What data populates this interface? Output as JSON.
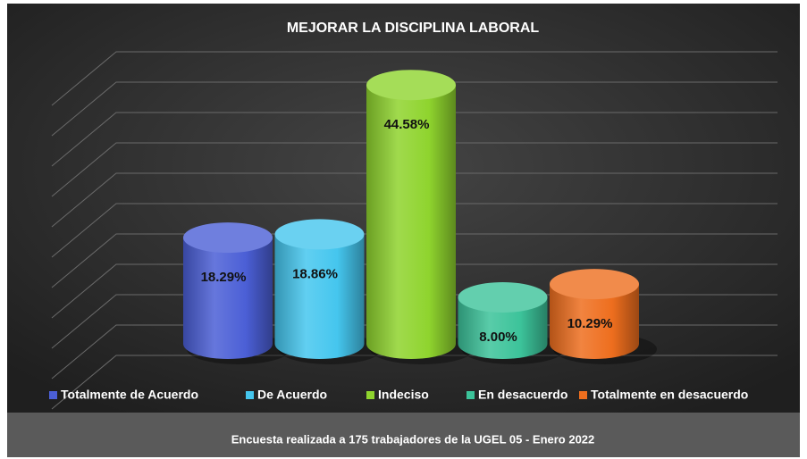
{
  "chart_data": {
    "type": "bar3d",
    "title": "MEJORAR LA DISCIPLINA LABORAL",
    "footnote": "Encuesta realizada a 175 trabajadores de la UGEL 05 - Enero 2022",
    "categories": [
      "Totalmente de Acuerdo",
      "De Acuerdo",
      "Indeciso",
      "En desacuerdo",
      "Totalmente en desacuerdo"
    ],
    "values": [
      18.29,
      18.86,
      44.58,
      8.0,
      10.29
    ],
    "value_labels": [
      "18.29%",
      "18.86%",
      "44.58%",
      "8.00%",
      "10.29%"
    ],
    "colors": [
      "#4b5fd6",
      "#45c6ee",
      "#8fd42e",
      "#3cc39a",
      "#ee6e1e"
    ],
    "ylim": [
      0,
      50
    ],
    "yticks": [
      0,
      5,
      10,
      15,
      20,
      25,
      30,
      35,
      40,
      45,
      50
    ],
    "grid": true
  }
}
